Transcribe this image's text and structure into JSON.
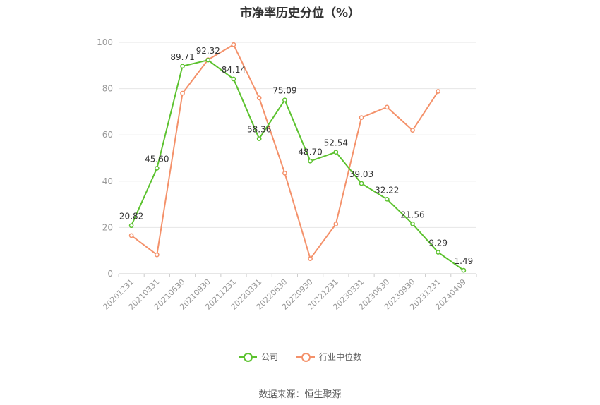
{
  "chart_data": {
    "type": "line",
    "title": "市净率历史分位（%）",
    "categories": [
      "20201231",
      "20210331",
      "20210630",
      "20210930",
      "20211231",
      "20220331",
      "20220630",
      "20220930",
      "20221231",
      "20230331",
      "20230630",
      "20230930",
      "20231231",
      "20240409"
    ],
    "ylim": [
      0,
      100
    ],
    "yticks": [
      0,
      20,
      40,
      60,
      80,
      100
    ],
    "grid": true,
    "legend_position": "bottom",
    "series": [
      {
        "name": "公司",
        "color": "#5cc22f",
        "values": [
          20.82,
          45.6,
          89.71,
          92.32,
          84.14,
          58.36,
          75.09,
          48.7,
          52.54,
          39.03,
          32.22,
          21.56,
          9.29,
          1.49
        ],
        "labels": [
          "20.82",
          "45.60",
          "89.71",
          "92.32",
          "84.14",
          "58.36",
          "75.09",
          "48.70",
          "52.54",
          "39.03",
          "32.22",
          "21.56",
          "9.29",
          "1.49"
        ]
      },
      {
        "name": "行业中位数",
        "color": "#f4916a",
        "values": [
          16.5,
          8.2,
          78.0,
          92.5,
          99.0,
          76.0,
          43.5,
          6.5,
          21.5,
          67.5,
          72.0,
          62.0,
          78.8,
          null
        ]
      }
    ],
    "source": "数据来源：恒生聚源"
  }
}
